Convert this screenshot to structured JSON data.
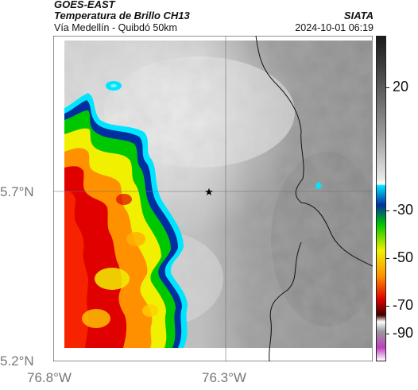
{
  "header": {
    "satellite": "GOES-EAST",
    "product": "Temperatura de Brillo CH13",
    "region": "Vía Medellín - Quibdó 50km",
    "org": "SIATA",
    "datetime": "2024-10-01 06:19"
  },
  "map": {
    "lat_ticks": [
      "5.7°N",
      "5.2°N"
    ],
    "lon_ticks": [
      "76.8°W",
      "76.3°W"
    ],
    "marker_icon": "star-icon"
  },
  "colorbar": {
    "ticks": [
      "20",
      "-30",
      "-50",
      "-70",
      "-90"
    ],
    "colors": {
      "warm": "#4a4a4a",
      "mid_gray": "#9a9a9a",
      "light": "#e8e8e8",
      "cyan": "#00e5ff",
      "blue": "#0030a0",
      "green": "#00c800",
      "yellow": "#f0f000",
      "orange": "#ff9000",
      "red": "#e00000",
      "dark_red": "#400000",
      "magenta": "#c040c0"
    }
  }
}
